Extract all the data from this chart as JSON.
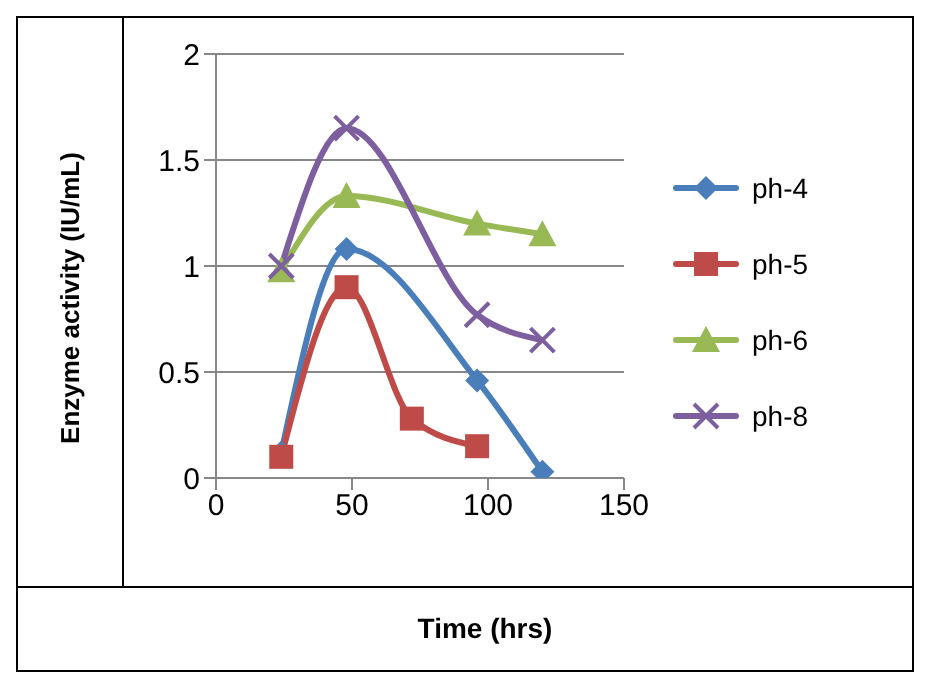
{
  "chart_data": {
    "type": "line",
    "xlabel": "Time (hrs)",
    "ylabel": "Enzyme activity (IU/mL)",
    "xlim": [
      0,
      150
    ],
    "xticks": [
      0,
      50,
      100,
      150
    ],
    "ylim": [
      0,
      2
    ],
    "yticks": [
      0,
      0.5,
      1,
      1.5,
      2
    ],
    "grid": "y",
    "legend": "right",
    "series": [
      {
        "name": "ph-4",
        "color": "#4a7ebb",
        "marker": "diamond",
        "x": [
          24,
          48,
          96,
          120
        ],
        "values": [
          0.12,
          1.08,
          0.46,
          0.03
        ]
      },
      {
        "name": "ph-5",
        "color": "#be4b48",
        "marker": "square",
        "x": [
          24,
          48,
          72,
          96
        ],
        "values": [
          0.1,
          0.9,
          0.28,
          0.15
        ]
      },
      {
        "name": "ph-6",
        "color": "#98b954",
        "marker": "triangle",
        "x": [
          24,
          48,
          96,
          120
        ],
        "values": [
          0.98,
          1.33,
          1.2,
          1.15
        ]
      },
      {
        "name": "ph-8",
        "color": "#7d5fa0",
        "marker": "cross",
        "x": [
          24,
          48,
          96,
          120
        ],
        "values": [
          1.0,
          1.65,
          0.77,
          0.65
        ]
      }
    ]
  }
}
